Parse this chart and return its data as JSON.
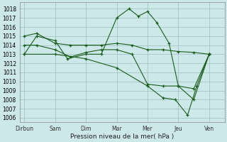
{
  "xlabel": "Pression niveau de la mer( hPa )",
  "background_color": "#cce8e8",
  "grid_color_major": "#9dbfbf",
  "grid_color_minor": "#b8d4d4",
  "line_color": "#1a5c1a",
  "ylim": [
    1005.5,
    1018.7
  ],
  "yticks": [
    1006,
    1007,
    1008,
    1009,
    1010,
    1011,
    1012,
    1013,
    1014,
    1015,
    1016,
    1017,
    1018
  ],
  "x_labels": [
    "Dirbun",
    "Sam",
    "Dim",
    "Mar",
    "Mer",
    "Jeu",
    "Ven"
  ],
  "x_positions": [
    0,
    1,
    2,
    3,
    4,
    5,
    6
  ],
  "xlim": [
    -0.15,
    6.5
  ],
  "series": [
    {
      "x": [
        0,
        0.4,
        1.0,
        1.4,
        2.0,
        2.5,
        3.0,
        3.4,
        3.7,
        4.0,
        4.3,
        4.7,
        5.0,
        5.5,
        6.0
      ],
      "y": [
        1013,
        1015,
        1014.5,
        1012.5,
        1013,
        1013,
        1017,
        1018,
        1017.2,
        1017.7,
        1016.5,
        1014.2,
        1009.5,
        1008,
        1013
      ]
    },
    {
      "x": [
        0,
        0.4,
        1.0,
        1.5,
        2.0,
        2.5,
        3.0,
        3.5,
        4.0,
        4.5,
        5.0,
        5.5,
        6.0
      ],
      "y": [
        1015,
        1015.3,
        1014.2,
        1014,
        1014,
        1014,
        1014.2,
        1014,
        1013.5,
        1013.5,
        1013.3,
        1013.2,
        1013
      ]
    },
    {
      "x": [
        0,
        0.4,
        1.0,
        1.5,
        2.0,
        2.5,
        3.0,
        3.5,
        4.0,
        4.5,
        5.0,
        5.5,
        6.0
      ],
      "y": [
        1014,
        1014,
        1013.5,
        1012.7,
        1013.2,
        1013.5,
        1013.5,
        1013,
        1009.7,
        1009.5,
        1009.5,
        1009.2,
        1013
      ]
    },
    {
      "x": [
        0,
        1.0,
        2.0,
        3.0,
        4.0,
        4.5,
        4.9,
        5.3,
        5.6,
        6.0
      ],
      "y": [
        1013,
        1013,
        1012.5,
        1011.5,
        1009.5,
        1008.2,
        1008,
        1006.3,
        1009.5,
        1013
      ]
    }
  ]
}
